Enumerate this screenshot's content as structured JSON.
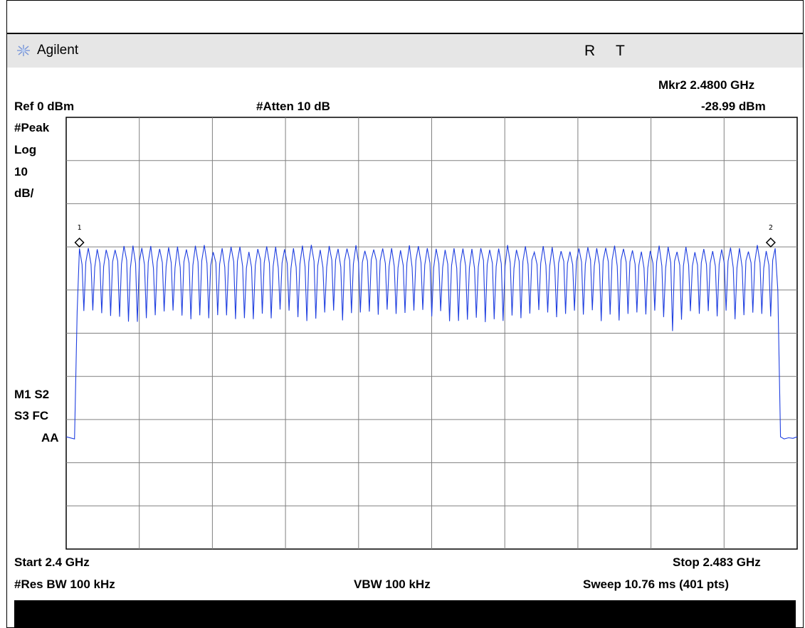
{
  "header": {
    "brand": "Agilent",
    "status_r": "R",
    "status_t": "T"
  },
  "marker_readout": {
    "line1": "Mkr2  2.4800 GHz",
    "line2": "-28.99 dBm"
  },
  "settings": {
    "ref_level": "Ref 0 dBm",
    "attenuation": "#Atten 10 dB",
    "detector": "#Peak",
    "scale_type": "Log",
    "scale_value": "10",
    "scale_unit": "dB/",
    "marker_status_1": "M1  S2",
    "marker_status_2": "S3  FC",
    "marker_status_3": "AA",
    "start": "Start 2.4 GHz",
    "stop": "Stop 2.483 GHz",
    "rbw": "#Res BW 100 kHz",
    "vbw": "VBW 100 kHz",
    "sweep": "Sweep 10.76 ms (401 pts)"
  },
  "colors": {
    "trace": "#1f3fe0",
    "grid": "#808080",
    "header_bg": "#e6e6e6"
  },
  "chart_data": {
    "type": "line",
    "x_unit": "GHz",
    "y_unit": "dBm",
    "xlim": [
      2.4,
      2.483
    ],
    "ylim": [
      -100,
      0
    ],
    "grid_divisions": {
      "x": 10,
      "y": 10
    },
    "series": [
      {
        "channels_start_ghz": 2.4015,
        "channels_end_ghz": 2.4805,
        "channel_count": 79,
        "peak_dbm": -29.5,
        "valley_dbm": -44.5,
        "noise_floor_dbm": -74
      }
    ],
    "markers": [
      {
        "label": "1",
        "x": 2.4015,
        "y": -29.0
      },
      {
        "label": "2",
        "x": 2.48,
        "y": -28.99
      }
    ]
  }
}
